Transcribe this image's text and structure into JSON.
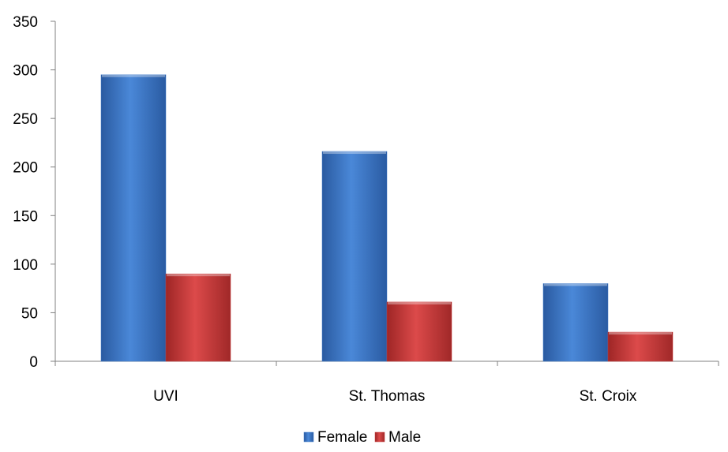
{
  "chart_data": {
    "type": "bar",
    "title": "",
    "xlabel": "",
    "ylabel": "",
    "categories": [
      "UVI",
      "St. Thomas",
      "St. Croix"
    ],
    "series": [
      {
        "name": "Female",
        "values": [
          295,
          216,
          80
        ],
        "color": "#3c78c8"
      },
      {
        "name": "Male",
        "values": [
          90,
          61,
          30
        ],
        "color": "#c83a3a"
      }
    ],
    "ylim": [
      0,
      350
    ],
    "yticks": [
      0,
      50,
      100,
      150,
      200,
      250,
      300,
      350
    ],
    "grid": false,
    "legend_position": "bottom"
  }
}
